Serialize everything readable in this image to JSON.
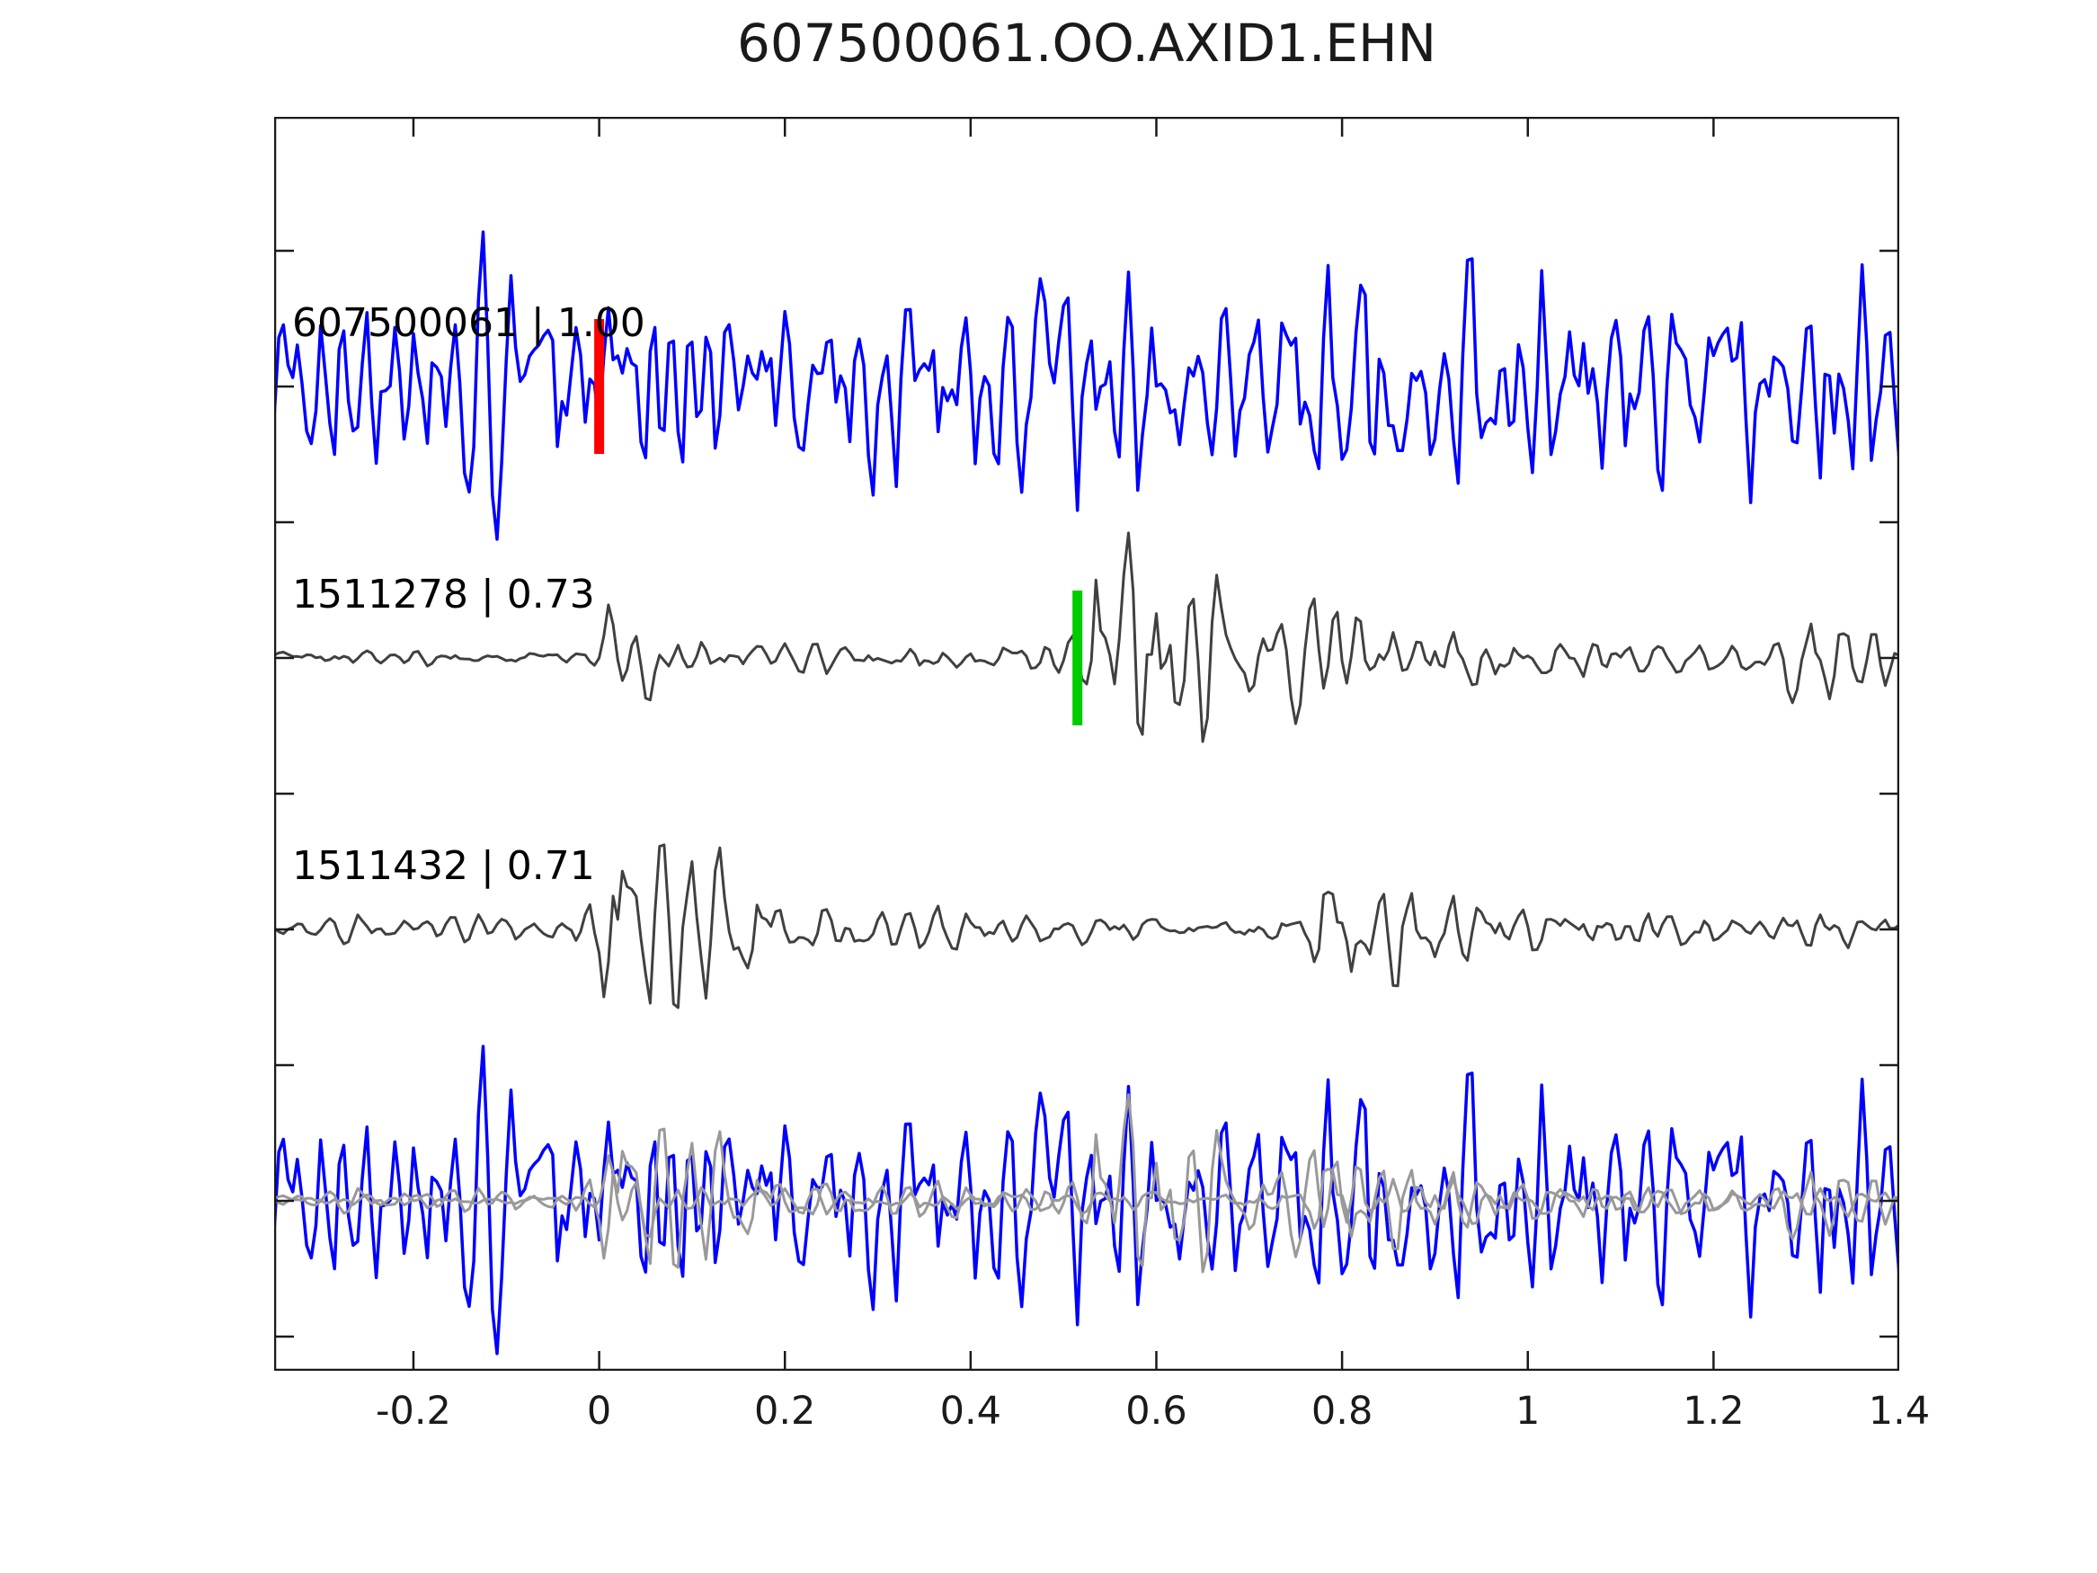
{
  "figure": {
    "title": "607500061.OO.AXID1.EHN",
    "background": "#ffffff"
  },
  "chart_data": {
    "type": "line",
    "title": "607500061.OO.AXID1.EHN",
    "subtitle": "",
    "xlabel": "",
    "ylabel": "",
    "grid": false,
    "legend": "none",
    "x_axis": {
      "range": [
        -0.35,
        1.4
      ],
      "ticks": [
        -0.2,
        0,
        0.2,
        0.4,
        0.6,
        0.8,
        1,
        1.2,
        1.4
      ],
      "tick_labels": [
        "-0.2",
        "0",
        "0.2",
        "0.4",
        "0.6",
        "0.8",
        "1",
        "1.2",
        "1.4"
      ]
    },
    "y_axis": {
      "tick_labels_visible": false,
      "unlabeled_tick_count": 9
    },
    "colors": {
      "axes": "#1a1a1a",
      "detection_trace": "#0000ff",
      "template_trace": "#404040",
      "overlay_template": "#999999",
      "pick_red": "#ff0000",
      "pick_green": "#00cc00",
      "label_text": "#000000"
    },
    "sample_step": 0.005,
    "traces": [
      {
        "id": "607500061",
        "label": "607500061 | 1.00",
        "correlation": 1.0,
        "color": "#0000ff",
        "row": 0,
        "pick": {
          "time": 0.0,
          "color": "#ff0000"
        },
        "synth": {
          "seed": 1234567,
          "ar": [
            0.676,
            0.64
          ],
          "gain": 0.8,
          "clamp": 1.5,
          "envelope": [
            [
              -0.35,
              1.0
            ],
            [
              1.4,
              1.0
            ]
          ]
        }
      },
      {
        "id": "1511278",
        "label": "1511278 | 0.73",
        "correlation": 0.73,
        "color": "#404040",
        "row": 1,
        "pick": {
          "time": 0.515,
          "color": "#00cc00"
        },
        "synth": {
          "seed": 777001,
          "ar": [
            0.9,
            0.7
          ],
          "gain": 1.0,
          "clamp": 1.6,
          "envelope": [
            [
              -0.35,
              0.06
            ],
            [
              -0.02,
              0.06
            ],
            [
              0,
              0.1
            ],
            [
              0.01,
              0.45
            ],
            [
              0.05,
              0.34
            ],
            [
              0.1,
              0.14
            ],
            [
              0.2,
              0.1
            ],
            [
              0.45,
              0.1
            ],
            [
              0.5,
              0.13
            ],
            [
              0.53,
              0.16
            ],
            [
              0.535,
              1.1
            ],
            [
              0.56,
              1.15
            ],
            [
              0.6,
              1.05
            ],
            [
              0.65,
              0.7
            ],
            [
              0.72,
              0.48
            ],
            [
              0.8,
              0.36
            ],
            [
              0.9,
              0.27
            ],
            [
              1,
              0.2
            ],
            [
              1.1,
              0.15
            ],
            [
              1.22,
              0.11
            ],
            [
              1.27,
              0.12
            ],
            [
              1.3,
              0.45
            ],
            [
              1.34,
              0.4
            ],
            [
              1.37,
              0.25
            ],
            [
              1.4,
              0.28
            ]
          ]
        }
      },
      {
        "id": "1511432",
        "label": "1511432 | 0.71",
        "correlation": 0.71,
        "color": "#404040",
        "row": 2,
        "pick": null,
        "synth": {
          "seed": 424242,
          "ar": [
            0.9,
            0.7
          ],
          "gain": 1.0,
          "clamp": 1.6,
          "envelope": [
            [
              -0.35,
              0.08
            ],
            [
              -0.03,
              0.09
            ],
            [
              0,
              0.35
            ],
            [
              0.015,
              1.15
            ],
            [
              0.045,
              1.0
            ],
            [
              0.09,
              0.65
            ],
            [
              0.13,
              0.5
            ],
            [
              0.18,
              0.35
            ],
            [
              0.22,
              0.24
            ],
            [
              0.3,
              0.16
            ],
            [
              0.4,
              0.13
            ],
            [
              0.55,
              0.11
            ],
            [
              0.7,
              0.1
            ],
            [
              0.76,
              0.12
            ],
            [
              0.78,
              0.65
            ],
            [
              0.82,
              0.55
            ],
            [
              0.86,
              0.42
            ],
            [
              0.92,
              0.3
            ],
            [
              1,
              0.23
            ],
            [
              1.1,
              0.18
            ],
            [
              1.25,
              0.15
            ],
            [
              1.4,
              0.13
            ]
          ]
        }
      }
    ],
    "overlay_row": {
      "row": 3,
      "layers": [
        {
          "trace": 0,
          "color": "#0000ff",
          "gain": 1.0
        },
        {
          "trace": 1,
          "color": "#999999",
          "gain": 0.85
        },
        {
          "trace": 2,
          "color": "#999999",
          "gain": 0.85
        }
      ]
    }
  }
}
